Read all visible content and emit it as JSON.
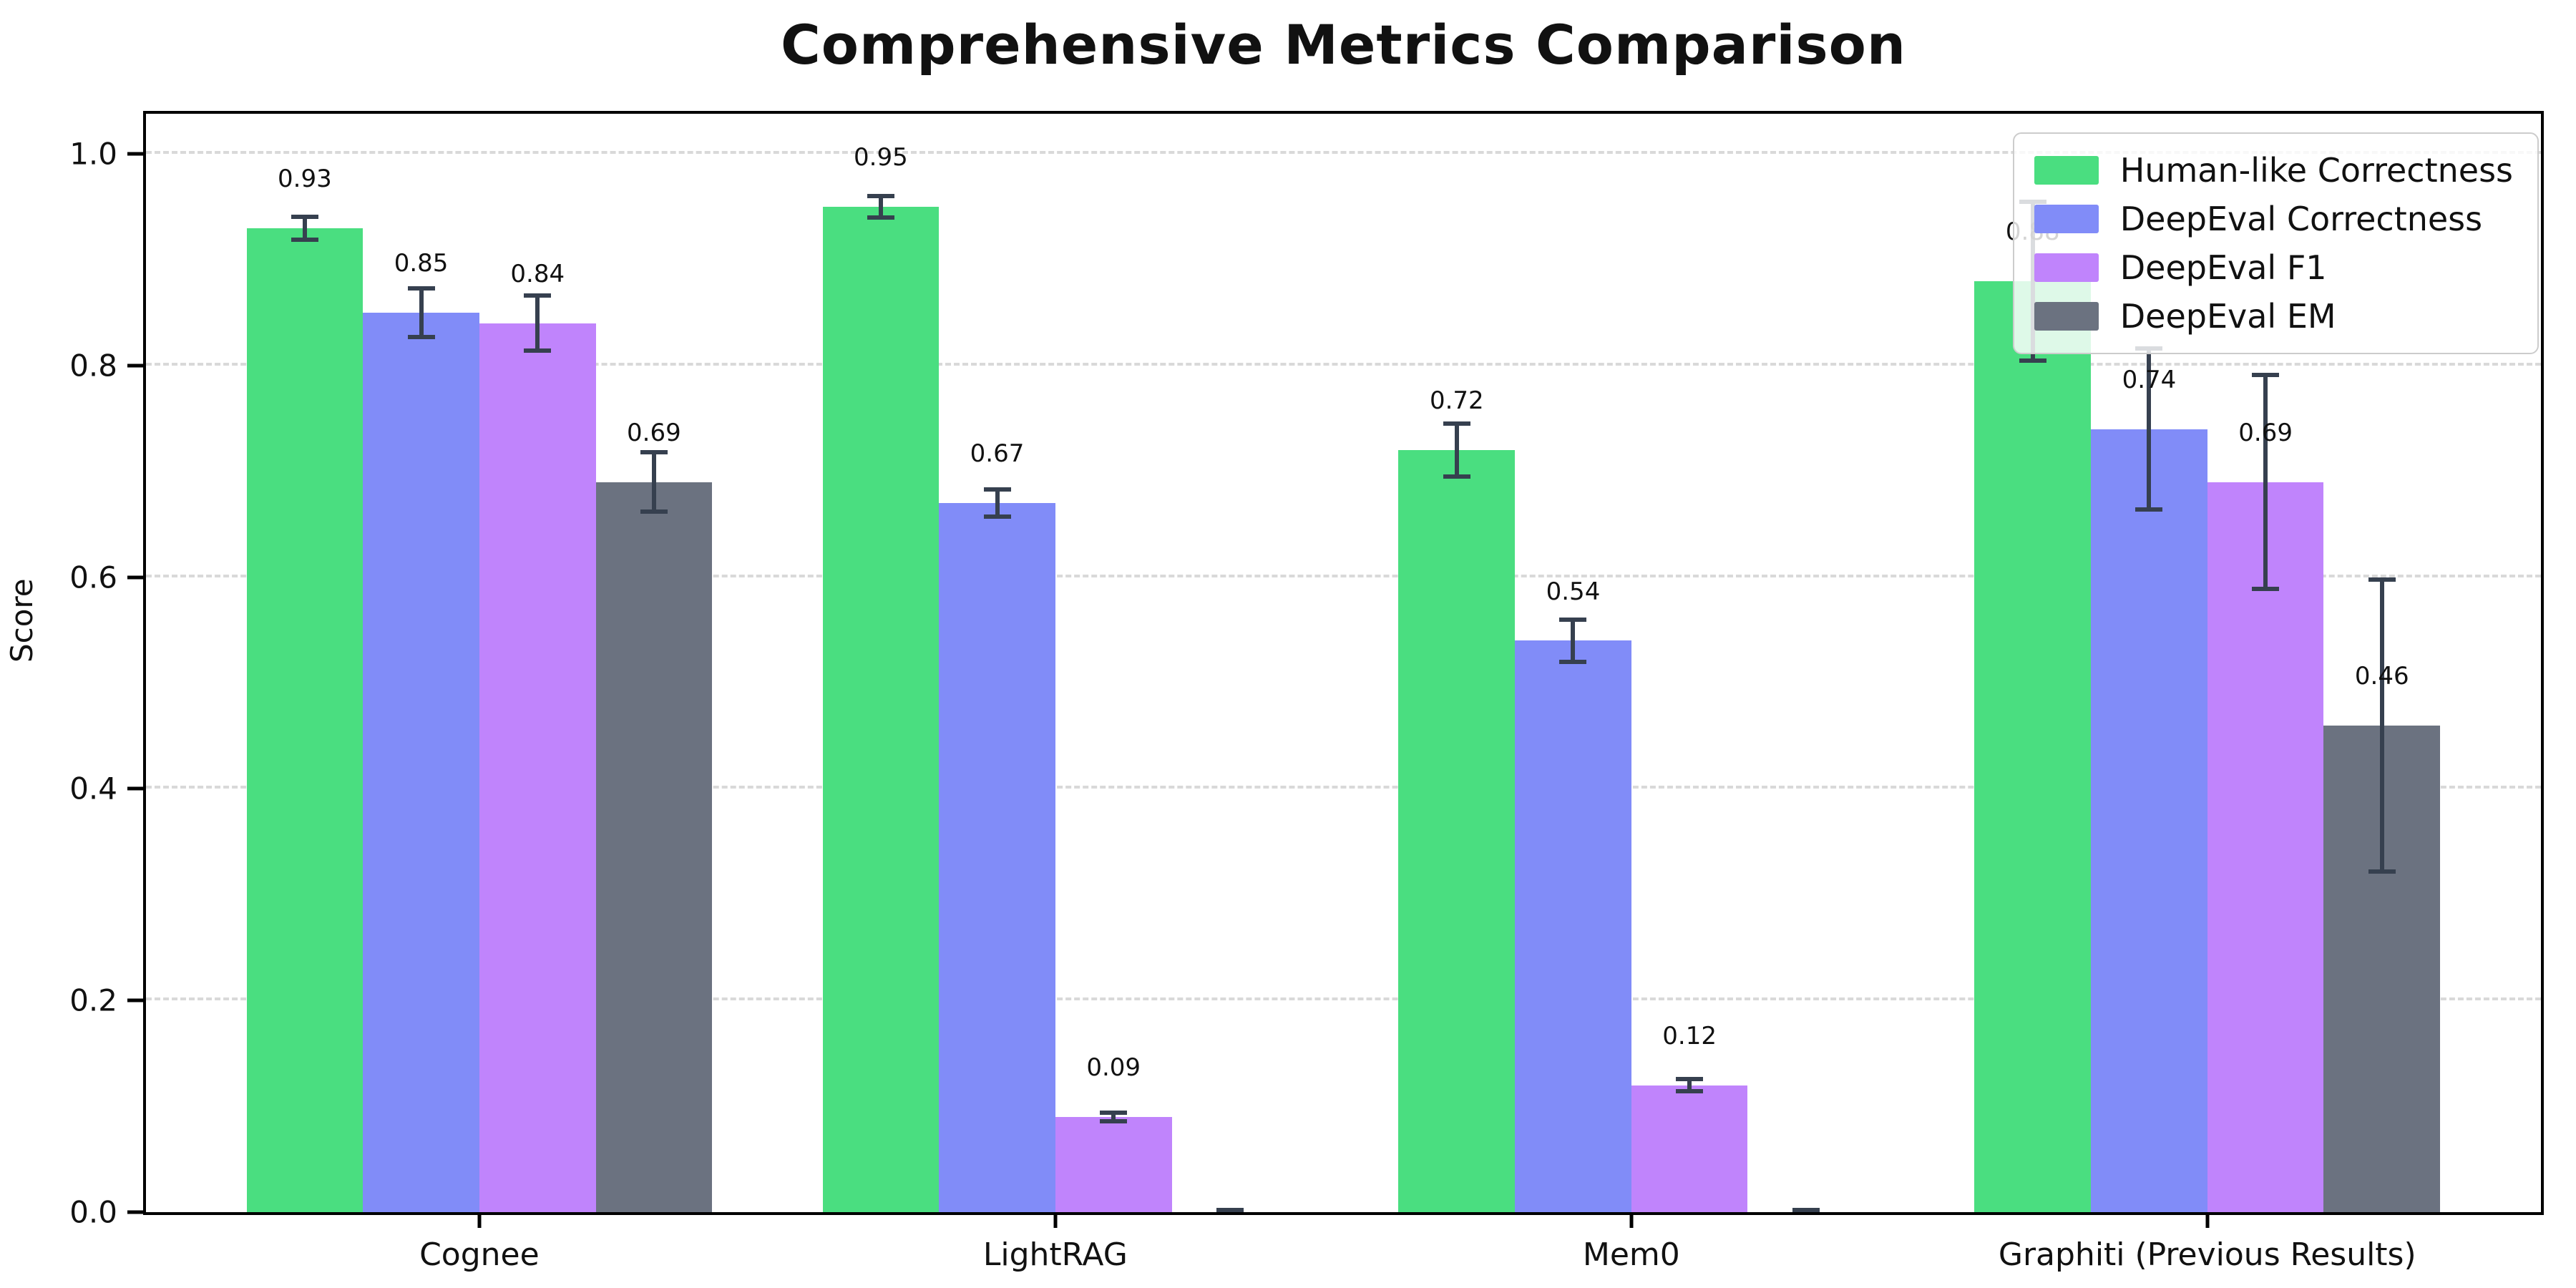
{
  "chart_data": {
    "type": "bar",
    "title": "Comprehensive Metrics Comparison",
    "ylabel": "Score",
    "xlabel": "",
    "categories": [
      "Cognee",
      "LightRAG",
      "Mem0",
      "Graphiti (Previous Results)"
    ],
    "series": [
      {
        "name": "Human-like Correctness",
        "color": "#4ade80",
        "values": [
          0.93,
          0.95,
          0.72,
          0.88
        ],
        "errors": [
          0.013,
          0.012,
          0.027,
          0.077
        ],
        "labels": [
          "0.93",
          "0.95",
          "0.72",
          "0.88"
        ]
      },
      {
        "name": "DeepEval Correctness",
        "color": "#818cf8",
        "values": [
          0.85,
          0.67,
          0.54,
          0.74
        ],
        "errors": [
          0.025,
          0.015,
          0.022,
          0.078
        ],
        "labels": [
          "0.85",
          "0.67",
          "0.54",
          "0.74"
        ]
      },
      {
        "name": "DeepEval F1",
        "color": "#c084fc",
        "values": [
          0.84,
          0.09,
          0.12,
          0.69
        ],
        "errors": [
          0.028,
          0.006,
          0.008,
          0.103
        ],
        "labels": [
          "0.84",
          "0.09",
          "0.12",
          "0.69"
        ]
      },
      {
        "name": "DeepEval EM",
        "color": "#6b7280",
        "values": [
          0.69,
          0.0,
          0.0,
          0.46
        ],
        "errors": [
          0.03,
          0.004,
          0.004,
          0.14
        ],
        "labels": [
          "0.69",
          "",
          "",
          "0.46"
        ]
      }
    ],
    "yticks": {
      "values": [
        0.0,
        0.2,
        0.4,
        0.6,
        0.8,
        1.0
      ],
      "labels": [
        "0.0",
        "0.2",
        "0.4",
        "0.6",
        "0.8",
        "1.0"
      ]
    },
    "ylim": [
      0,
      1.038
    ],
    "grid": {
      "axis": "y",
      "style": "dashed",
      "color": "#d9d9d9"
    },
    "legend_position": "upper right",
    "error_bar_color": "#36404f",
    "axis_color": "#000000",
    "background_color": "#ffffff"
  }
}
